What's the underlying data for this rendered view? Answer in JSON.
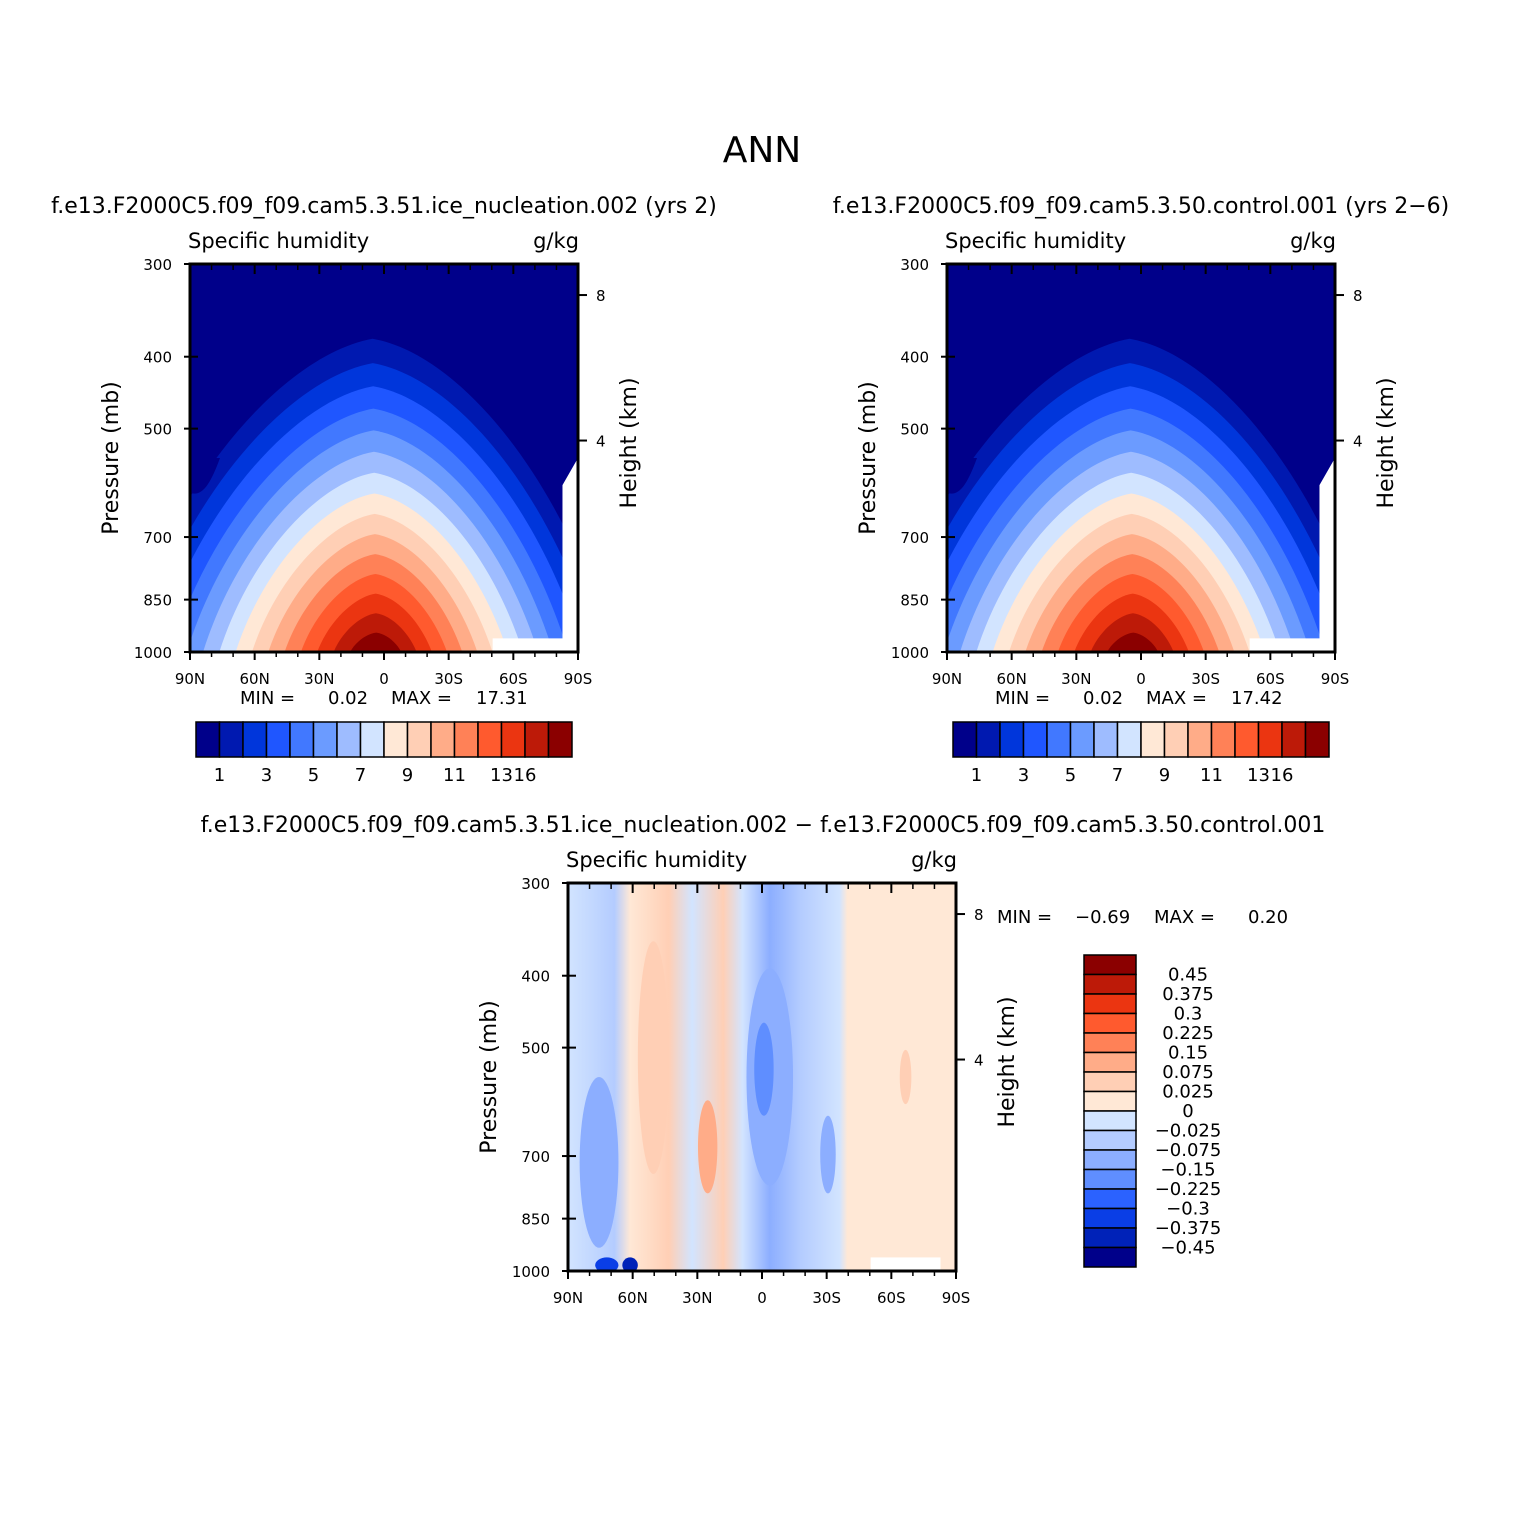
{
  "title": "ANN",
  "panels": {
    "test": {
      "header": "f.e13.F2000C5.f09_f09.cam5.3.51.ice_nucleation.002  (yrs  2)",
      "variable": "Specific  humidity",
      "units": "g/kg",
      "stats": {
        "min_label": "MIN  =",
        "min": "0.02",
        "max_label": "MAX  =",
        "max": "17.31"
      }
    },
    "control": {
      "header": "f.e13.F2000C5.f09_f09.cam5.3.50.control.001  (yrs  2−6)",
      "variable": "Specific  humidity",
      "units": "g/kg",
      "stats": {
        "min_label": "MIN  =",
        "min": "0.02",
        "max_label": "MAX  =",
        "max": "17.42"
      }
    },
    "diff": {
      "header": "f.e13.F2000C5.f09_f09.cam5.3.51.ice_nucleation.002  −  f.e13.F2000C5.f09_f09.cam5.3.50.control.001",
      "variable": "Specific  humidity",
      "units": "g/kg",
      "stats": {
        "min_label": "MIN  =",
        "min": "−0.69",
        "max_label": "MAX  =",
        "max": "0.20"
      }
    }
  },
  "axes": {
    "ylabel": "Pressure  (mb)",
    "ylabel_right": "Height  (km)",
    "pressure_ticks": [
      "300",
      "400",
      "500",
      "700",
      "850",
      "1000"
    ],
    "height_ticks": [
      "8",
      "4"
    ],
    "lat_ticks": [
      "90N",
      "60N",
      "30N",
      "0",
      "30S",
      "60S",
      "90S"
    ]
  },
  "colorbar_full": {
    "colors": [
      "#00008a",
      "#0019b0",
      "#0036db",
      "#1f56ff",
      "#4178ff",
      "#6b9bff",
      "#9ebcff",
      "#d2e4ff",
      "#ffe8d6",
      "#ffcfb5",
      "#ffac88",
      "#ff8157",
      "#ff5a2e",
      "#eb3511",
      "#bd1a08",
      "#8b0000"
    ],
    "labels": [
      "1",
      "3",
      "5",
      "7",
      "9",
      "11",
      "13",
      "16"
    ]
  },
  "colorbar_diff": {
    "colors": [
      "#8b0000",
      "#bd1a08",
      "#eb3511",
      "#ff5a2e",
      "#ff8157",
      "#ffac88",
      "#ffcfb5",
      "#ffe8d6",
      "#d2e4ff",
      "#b4ccff",
      "#8caeff",
      "#5f8eff",
      "#2b62ff",
      "#0a3ee6",
      "#0022b8",
      "#00008a"
    ],
    "labels": [
      "0.45",
      "0.375",
      "0.3",
      "0.225",
      "0.15",
      "0.075",
      "0.025",
      "0",
      "−0.025",
      "−0.075",
      "−0.15",
      "−0.225",
      "−0.3",
      "−0.375",
      "−0.45"
    ]
  },
  "chart_data": [
    {
      "type": "heatmap",
      "title": "f.e13.F2000C5.f09_f09.cam5.3.51.ice_nucleation.002  (yrs  2)",
      "subtitle": "Specific  humidity",
      "units": "g/kg",
      "xlabel": "",
      "ylabel": "Pressure  (mb)",
      "x": [
        "90N",
        "60N",
        "30N",
        "0",
        "30S",
        "60S",
        "90S"
      ],
      "y": [
        300,
        400,
        500,
        700,
        850,
        1000
      ],
      "z_approx_peak_location": "0 latitude, 1000 mb",
      "min": 0.02,
      "max": 17.31,
      "levels": [
        1,
        2,
        3,
        4,
        5,
        6,
        7,
        8,
        9,
        10,
        11,
        12,
        13,
        14,
        16
      ]
    },
    {
      "type": "heatmap",
      "title": "f.e13.F2000C5.f09_f09.cam5.3.50.control.001  (yrs  2−6)",
      "subtitle": "Specific  humidity",
      "units": "g/kg",
      "xlabel": "",
      "ylabel": "Pressure  (mb)",
      "x": [
        "90N",
        "60N",
        "30N",
        "0",
        "30S",
        "60S",
        "90S"
      ],
      "y": [
        300,
        400,
        500,
        700,
        850,
        1000
      ],
      "min": 0.02,
      "max": 17.42,
      "levels": [
        1,
        2,
        3,
        4,
        5,
        6,
        7,
        8,
        9,
        10,
        11,
        12,
        13,
        14,
        16
      ]
    },
    {
      "type": "heatmap",
      "title": "f.e13.F2000C5.f09_f09.cam5.3.51.ice_nucleation.002  −  f.e13.F2000C5.f09_f09.cam5.3.50.control.001",
      "subtitle": "Specific  humidity",
      "units": "g/kg",
      "xlabel": "",
      "ylabel": "Pressure  (mb)",
      "x": [
        "90N",
        "60N",
        "30N",
        "0",
        "30S",
        "60S",
        "90S"
      ],
      "y": [
        300,
        400,
        500,
        700,
        850,
        1000
      ],
      "min": -0.69,
      "max": 0.2,
      "levels": [
        -0.45,
        -0.375,
        -0.3,
        -0.225,
        -0.15,
        -0.075,
        -0.025,
        0,
        0.025,
        0.075,
        0.15,
        0.225,
        0.3,
        0.375,
        0.45
      ]
    }
  ]
}
